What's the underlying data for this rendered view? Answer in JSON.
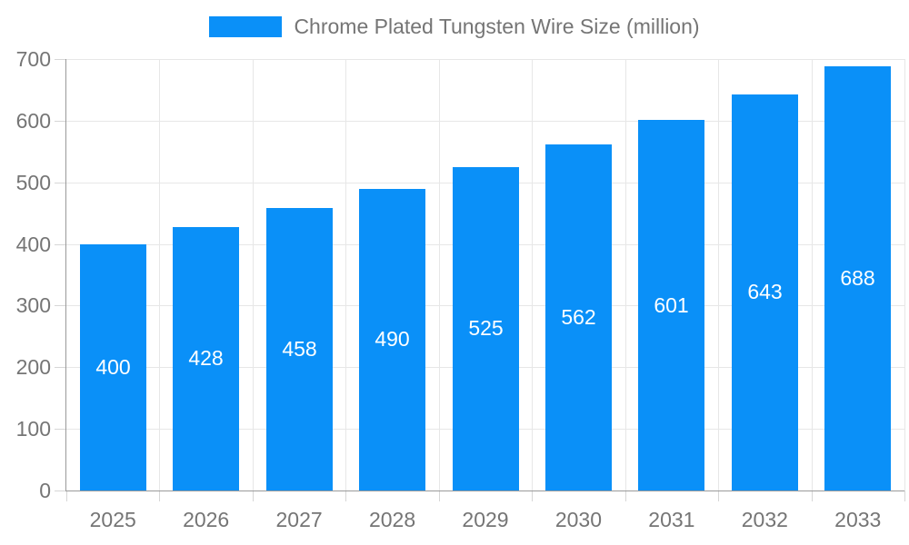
{
  "legend": {
    "label": "Chrome Plated Tungsten Wire Size (million)"
  },
  "colors": {
    "bar": "#0a90f8",
    "axis_line": "#9a9a9a",
    "grid_line": "#e7e7e7",
    "tick": "#d6d6d6",
    "axis_text": "#757575",
    "bar_label_text": "#ffffff",
    "background": "#ffffff"
  },
  "chart_data": {
    "type": "bar",
    "title": "Chrome Plated Tungsten Wire Size (million)",
    "categories": [
      "2025",
      "2026",
      "2027",
      "2028",
      "2029",
      "2030",
      "2031",
      "2032",
      "2033"
    ],
    "values": [
      400,
      428,
      458,
      490,
      525,
      562,
      601,
      643,
      688
    ],
    "xlabel": "",
    "ylabel": "",
    "ylim": [
      0,
      700
    ],
    "yticks": [
      0,
      100,
      200,
      300,
      400,
      500,
      600,
      700
    ],
    "grid": true,
    "legend_position": "top-center",
    "bar_label_position": "center-inside",
    "bar_width_fraction": 0.71
  }
}
